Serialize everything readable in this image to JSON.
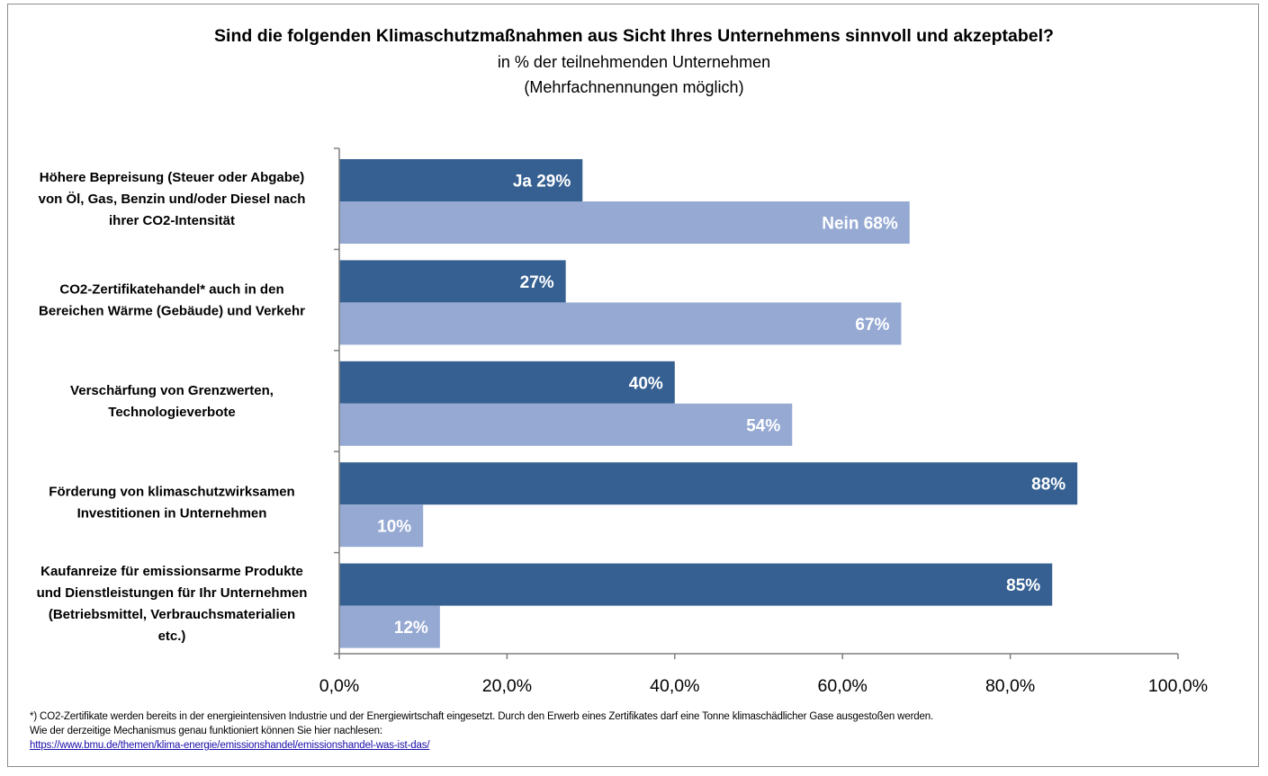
{
  "chart_data": {
    "type": "bar",
    "orientation": "horizontal",
    "title": "Sind die folgenden Klimaschutzmaßnahmen aus Sicht Ihres Unternehmens sinnvoll und akzeptabel?",
    "subtitle": "in % der teilnehmenden Unternehmen",
    "subtitle2": "(Mehrfachnennungen möglich)",
    "categories": [
      "Höhere Bepreisung (Steuer oder Abgabe) von Öl, Gas, Benzin und/oder Diesel nach ihrer CO2-Intensität",
      "CO2-Zertifikatehandel* auch in den Bereichen Wärme (Gebäude) und Verkehr",
      "Verschärfung von Grenzwerten, Technologieverbote",
      "Förderung von klimaschutzwirksamen Investitionen in Unternehmen",
      "Kaufanreize für emissionsarme Produkte und Dienstleistungen für Ihr Unternehmen (Betriebsmittel, Verbrauchsmaterialien etc.)"
    ],
    "category_lines": [
      [
        "Höhere Bepreisung (Steuer oder Abgabe)",
        "von Öl, Gas, Benzin und/oder Diesel nach",
        "ihrer CO2-Intensität"
      ],
      [
        "CO2-Zertifikatehandel* auch in den",
        "Bereichen Wärme (Gebäude) und Verkehr"
      ],
      [
        "Verschärfung von Grenzwerten,",
        "Technologieverbote"
      ],
      [
        "Förderung von klimaschutzwirksamen",
        "Investitionen in Unternehmen"
      ],
      [
        "Kaufanreize für emissionsarme Produkte",
        "und Dienstleistungen für Ihr Unternehmen",
        "(Betriebsmittel, Verbrauchsmaterialien",
        "etc.)"
      ]
    ],
    "series": [
      {
        "name": "Ja",
        "color": "#366092",
        "values": [
          29,
          27,
          40,
          88,
          85
        ],
        "labels": [
          "Ja 29%",
          "27%",
          "40%",
          "88%",
          "85%"
        ]
      },
      {
        "name": "Nein",
        "color": "#95a9d3",
        "values": [
          68,
          67,
          54,
          10,
          12
        ],
        "labels": [
          "Nein 68%",
          "67%",
          "54%",
          "10%",
          "12%"
        ]
      }
    ],
    "xlim": [
      0,
      100
    ],
    "xticks": [
      0,
      20,
      40,
      60,
      80,
      100
    ],
    "xtick_labels": [
      "0,0%",
      "20,0%",
      "40,0%",
      "60,0%",
      "80,0%",
      "100,0%"
    ],
    "grid": false,
    "legend": "none"
  },
  "footnote": {
    "line1": "*) CO2-Zertifikate werden bereits in der energieintensiven Industrie und der Energiewirtschaft eingesetzt. Durch den Erwerb eines Zertifikates darf eine Tonne klimaschädlicher Gase ausgestoßen werden.",
    "line2": "Wie der derzeitige Mechanismus genau funktioniert können Sie hier nachlesen:",
    "link": "https://www.bmu.de/themen/klima-energie/emissionshandel/emissionshandel-was-ist-das/"
  },
  "colors": {
    "axis": "#7f7f7f",
    "frame": "#8c8c8c",
    "link": "#1a0dab"
  }
}
